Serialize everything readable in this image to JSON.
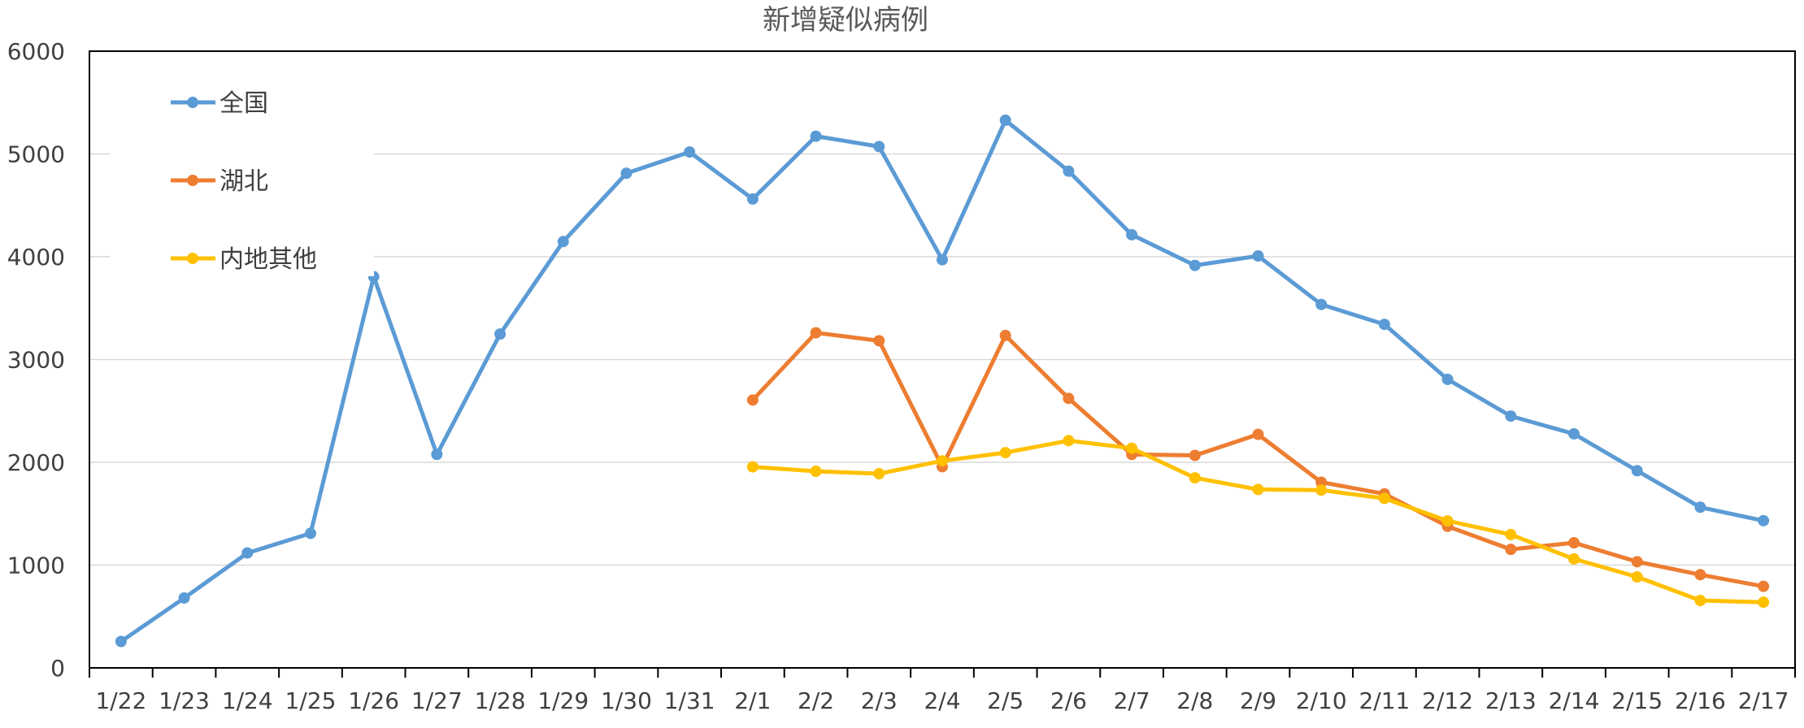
{
  "chart_data": {
    "type": "line",
    "title": "新增疑似病例",
    "xlabel": "",
    "ylabel": "",
    "ylim": [
      0,
      6000
    ],
    "yticks": [
      0,
      1000,
      2000,
      3000,
      4000,
      5000,
      6000
    ],
    "grid": true,
    "legend_position": "top-left",
    "categories": [
      "1/22",
      "1/23",
      "1/24",
      "1/25",
      "1/26",
      "1/27",
      "1/28",
      "1/29",
      "1/30",
      "1/31",
      "2/1",
      "2/2",
      "2/3",
      "2/4",
      "2/5",
      "2/6",
      "2/7",
      "2/8",
      "2/9",
      "2/10",
      "2/11",
      "2/12",
      "2/13",
      "2/14",
      "2/15",
      "2/16",
      "2/17"
    ],
    "series": [
      {
        "name": "全国",
        "color": "#5b9bd5",
        "values": [
          257,
          680,
          1118,
          1309,
          3806,
          2077,
          3248,
          4148,
          4812,
          5019,
          4562,
          5173,
          5072,
          3971,
          5328,
          4833,
          4214,
          3916,
          4008,
          3536,
          3342,
          2807,
          2450,
          2277,
          1918,
          1563,
          1432
        ]
      },
      {
        "name": "湖北",
        "color": "#ed7d31",
        "values": [
          null,
          null,
          null,
          null,
          null,
          null,
          null,
          null,
          null,
          null,
          2606,
          3260,
          3183,
          1957,
          3234,
          2622,
          2077,
          2067,
          2272,
          1806,
          1693,
          1377,
          1153,
          1217,
          1033,
          907,
          793
        ]
      },
      {
        "name": "内地其他",
        "color": "#ffc000",
        "values": [
          null,
          null,
          null,
          null,
          null,
          null,
          null,
          null,
          null,
          null,
          1956,
          1913,
          1889,
          2014,
          2094,
          2211,
          2137,
          1849,
          1736,
          1730,
          1649,
          1430,
          1297,
          1060,
          885,
          656,
          639
        ]
      }
    ]
  }
}
